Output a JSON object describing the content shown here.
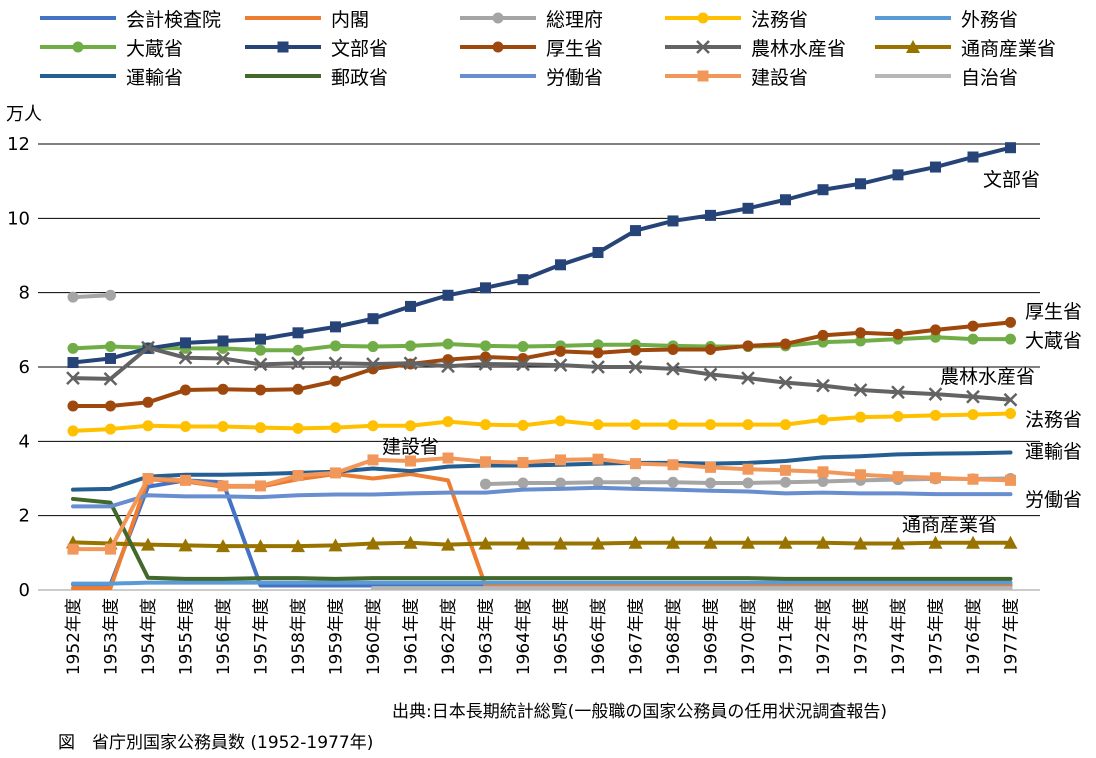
{
  "chart_data": {
    "type": "line",
    "title": "",
    "ylabel": "万人",
    "xlabel": "",
    "ylim": [
      0,
      12
    ],
    "yticks": [
      0,
      2,
      4,
      6,
      8,
      10,
      12
    ],
    "grid": "horizontal",
    "legend_position": "top",
    "categories": [
      "1952年度",
      "1953年度",
      "1954年度",
      "1955年度",
      "1956年度",
      "1957年度",
      "1958年度",
      "1959年度",
      "1960年度",
      "1961年度",
      "1962年度",
      "1963年度",
      "1964年度",
      "1965年度",
      "1966年度",
      "1967年度",
      "1968年度",
      "1969年度",
      "1970年度",
      "1971年度",
      "1972年度",
      "1973年度",
      "1974年度",
      "1975年度",
      "1976年度",
      "1977年度"
    ],
    "series": [
      {
        "name": "会計検査院",
        "color": "#4472C4",
        "marker": "none",
        "values": [
          0.15,
          0.15,
          2.78,
          2.95,
          2.9,
          0.12,
          0.12,
          0.12,
          0.12,
          0.12,
          0.12,
          0.12,
          0.12,
          0.12,
          0.12,
          0.12,
          0.12,
          0.12,
          0.12,
          0.12,
          0.12,
          0.12,
          0.12,
          0.12,
          0.12,
          0.12
        ]
      },
      {
        "name": "内閣",
        "color": "#ED7D31",
        "marker": "none",
        "values": [
          0.05,
          0.05,
          2.98,
          2.92,
          2.78,
          2.78,
          2.98,
          3.12,
          3.0,
          3.12,
          2.95,
          0.12,
          0.12,
          0.12,
          0.12,
          0.12,
          0.12,
          0.12,
          0.12,
          0.12,
          0.12,
          0.12,
          0.12,
          0.12,
          0.12,
          0.12
        ]
      },
      {
        "name": "総理府",
        "color": "#A5A5A5",
        "marker": "circle",
        "values": [
          7.88,
          7.93,
          null,
          null,
          null,
          null,
          null,
          null,
          null,
          null,
          null,
          2.85,
          2.88,
          2.88,
          2.9,
          2.9,
          2.9,
          2.88,
          2.88,
          2.9,
          2.92,
          2.95,
          2.97,
          2.99,
          2.99,
          3.0
        ]
      },
      {
        "name": "法務省",
        "color": "#FFC000",
        "marker": "circle",
        "values": [
          4.28,
          4.33,
          4.42,
          4.4,
          4.4,
          4.37,
          4.35,
          4.37,
          4.42,
          4.42,
          4.53,
          4.45,
          4.43,
          4.55,
          4.45,
          4.45,
          4.45,
          4.45,
          4.45,
          4.45,
          4.58,
          4.65,
          4.67,
          4.7,
          4.72,
          4.75
        ]
      },
      {
        "name": "外務省",
        "color": "#5B9BD5",
        "marker": "none",
        "values": [
          0.17,
          0.17,
          0.2,
          0.2,
          0.2,
          0.2,
          0.2,
          0.2,
          0.2,
          0.2,
          0.2,
          0.2,
          0.2,
          0.2,
          0.2,
          0.2,
          0.2,
          0.2,
          0.2,
          0.2,
          0.2,
          0.2,
          0.2,
          0.2,
          0.2,
          0.2
        ]
      },
      {
        "name": "大蔵省",
        "color": "#70AD47",
        "marker": "circle",
        "values": [
          6.5,
          6.55,
          6.52,
          6.5,
          6.5,
          6.45,
          6.45,
          6.57,
          6.55,
          6.57,
          6.62,
          6.57,
          6.55,
          6.57,
          6.6,
          6.6,
          6.57,
          6.55,
          6.55,
          6.57,
          6.67,
          6.7,
          6.75,
          6.8,
          6.75,
          6.75
        ]
      },
      {
        "name": "文部省",
        "color": "#264478",
        "marker": "square",
        "values": [
          6.12,
          6.23,
          6.5,
          6.65,
          6.7,
          6.75,
          6.92,
          7.08,
          7.3,
          7.63,
          7.93,
          8.13,
          8.35,
          8.75,
          9.08,
          9.67,
          9.93,
          10.08,
          10.27,
          10.5,
          10.77,
          10.93,
          11.17,
          11.38,
          11.65,
          11.9
        ]
      },
      {
        "name": "厚生省",
        "color": "#9E480E",
        "marker": "circle",
        "values": [
          4.95,
          4.95,
          5.05,
          5.38,
          5.4,
          5.38,
          5.4,
          5.62,
          5.95,
          6.08,
          6.2,
          6.27,
          6.23,
          6.42,
          6.38,
          6.45,
          6.47,
          6.47,
          6.57,
          6.62,
          6.85,
          6.92,
          6.88,
          7.0,
          7.1,
          7.2
        ]
      },
      {
        "name": "農林水産省",
        "color": "#636363",
        "marker": "x",
        "values": [
          5.7,
          5.68,
          6.52,
          6.25,
          6.23,
          6.07,
          6.1,
          6.1,
          6.08,
          6.1,
          6.02,
          6.08,
          6.07,
          6.05,
          6.0,
          6.0,
          5.95,
          5.8,
          5.7,
          5.58,
          5.5,
          5.38,
          5.32,
          5.27,
          5.2,
          5.12
        ]
      },
      {
        "name": "通商産業省",
        "color": "#997300",
        "marker": "triangle",
        "values": [
          1.28,
          1.25,
          1.22,
          1.2,
          1.18,
          1.18,
          1.18,
          1.2,
          1.25,
          1.27,
          1.22,
          1.25,
          1.25,
          1.25,
          1.25,
          1.27,
          1.27,
          1.27,
          1.27,
          1.27,
          1.27,
          1.25,
          1.25,
          1.27,
          1.27,
          1.27
        ]
      },
      {
        "name": "運輸省",
        "color": "#255E91",
        "marker": "none",
        "values": [
          2.7,
          2.72,
          3.05,
          3.1,
          3.1,
          3.12,
          3.15,
          3.18,
          3.27,
          3.2,
          3.32,
          3.35,
          3.35,
          3.37,
          3.4,
          3.42,
          3.42,
          3.4,
          3.42,
          3.47,
          3.57,
          3.6,
          3.65,
          3.67,
          3.68,
          3.7
        ]
      },
      {
        "name": "郵政省",
        "color": "#43682B",
        "marker": "none",
        "values": [
          2.45,
          2.35,
          0.33,
          0.3,
          0.3,
          0.32,
          0.32,
          0.3,
          0.32,
          0.32,
          0.32,
          0.32,
          0.32,
          0.32,
          0.32,
          0.32,
          0.32,
          0.32,
          0.32,
          0.3,
          0.3,
          0.3,
          0.3,
          0.3,
          0.3,
          0.3
        ]
      },
      {
        "name": "労働省",
        "color": "#698ED0",
        "marker": "none",
        "values": [
          2.25,
          2.25,
          2.55,
          2.52,
          2.52,
          2.5,
          2.55,
          2.57,
          2.57,
          2.6,
          2.62,
          2.62,
          2.7,
          2.72,
          2.75,
          2.72,
          2.7,
          2.67,
          2.65,
          2.6,
          2.62,
          2.6,
          2.6,
          2.58,
          2.58,
          2.58
        ]
      },
      {
        "name": "建設省",
        "color": "#F1975A",
        "marker": "square",
        "values": [
          1.1,
          1.1,
          3.0,
          2.95,
          2.8,
          2.8,
          3.08,
          3.15,
          3.5,
          3.47,
          3.55,
          3.45,
          3.43,
          3.5,
          3.52,
          3.4,
          3.37,
          3.3,
          3.25,
          3.22,
          3.18,
          3.1,
          3.05,
          3.02,
          2.98,
          2.95
        ]
      },
      {
        "name": "自治省",
        "color": "#B7B7B7",
        "marker": "none",
        "values": [
          null,
          null,
          null,
          null,
          null,
          null,
          null,
          null,
          0.05,
          0.05,
          0.05,
          0.05,
          0.05,
          0.05,
          0.05,
          0.05,
          0.05,
          0.05,
          0.05,
          0.05,
          0.05,
          0.05,
          0.05,
          0.05,
          0.05,
          0.05
        ]
      }
    ],
    "annotations": [
      {
        "text": "文部省",
        "series": "文部省"
      },
      {
        "text": "厚生省",
        "series": "厚生省"
      },
      {
        "text": "大蔵省",
        "series": "大蔵省"
      },
      {
        "text": "農林水産省",
        "series": "農林水産省"
      },
      {
        "text": "法務省",
        "series": "法務省"
      },
      {
        "text": "運輸省",
        "series": "運輸省"
      },
      {
        "text": "労働省",
        "series": "労働省"
      },
      {
        "text": "通商産業省",
        "series": "通商産業省"
      },
      {
        "text": "建設省",
        "series": "建設省"
      }
    ]
  },
  "source_text": "出典:日本長期統計総覧(一般職の国家公務員の任用状況調査報告)",
  "caption_text": "図　省庁別国家公務員数 (1952-1977年)"
}
